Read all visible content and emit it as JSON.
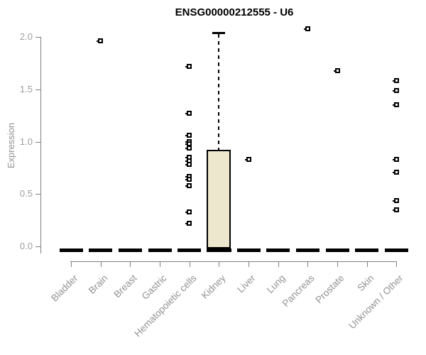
{
  "colors": {
    "box_fill": "#ECE7CD",
    "box_border": "#000000",
    "axis": "#808080",
    "muted_text": "#929292",
    "tick_text": "#9e9e9e",
    "title_text": "#000000",
    "background": "#ffffff"
  },
  "chart_data": {
    "type": "boxplot",
    "title": "ENSG00000212555 - U6",
    "xlabel": "",
    "ylabel": "Expression",
    "ylim": [
      0,
      2.1
    ],
    "yticks": [
      "0.0",
      "0.5",
      "1.0",
      "1.5",
      "2.0"
    ],
    "grid": false,
    "legend": null,
    "categories": [
      "Bladder",
      "Brain",
      "Breast",
      "Gastric",
      "Hematopoietic cells",
      "Kidney",
      "Liver",
      "Lung",
      "Pancreas",
      "Prostate",
      "Skin",
      "Unknown / Other"
    ],
    "series": [
      {
        "category": "Bladder",
        "q1": 0,
        "median": 0,
        "q3": 0,
        "whisker_low": 0,
        "whisker_high": 0,
        "outliers": []
      },
      {
        "category": "Brain",
        "q1": 0,
        "median": 0,
        "q3": 0,
        "whisker_low": 0,
        "whisker_high": 0,
        "outliers": [
          1.96
        ]
      },
      {
        "category": "Breast",
        "q1": 0,
        "median": 0,
        "q3": 0,
        "whisker_low": 0,
        "whisker_high": 0,
        "outliers": []
      },
      {
        "category": "Gastric",
        "q1": 0,
        "median": 0,
        "q3": 0,
        "whisker_low": 0,
        "whisker_high": 0,
        "outliers": []
      },
      {
        "category": "Hematopoietic cells",
        "q1": 0,
        "median": 0,
        "q3": 0,
        "whisker_low": 0,
        "whisker_high": 0,
        "outliers": [
          1.72,
          1.27,
          1.06,
          1.0,
          0.98,
          0.94,
          0.85,
          0.82,
          0.78,
          0.67,
          0.64,
          0.58,
          0.33,
          0.22
        ]
      },
      {
        "category": "Kidney",
        "q1": 0,
        "median": 0,
        "q3": 0.92,
        "whisker_low": 0,
        "whisker_high": 2.05,
        "outliers": []
      },
      {
        "category": "Liver",
        "q1": 0,
        "median": 0,
        "q3": 0,
        "whisker_low": 0,
        "whisker_high": 0,
        "outliers": [
          0.83
        ]
      },
      {
        "category": "Lung",
        "q1": 0,
        "median": 0,
        "q3": 0,
        "whisker_low": 0,
        "whisker_high": 0,
        "outliers": []
      },
      {
        "category": "Pancreas",
        "q1": 0,
        "median": 0,
        "q3": 0,
        "whisker_low": 0,
        "whisker_high": 0,
        "outliers": [
          2.08
        ]
      },
      {
        "category": "Prostate",
        "q1": 0,
        "median": 0,
        "q3": 0,
        "whisker_low": 0,
        "whisker_high": 0,
        "outliers": [
          1.68
        ]
      },
      {
        "category": "Skin",
        "q1": 0,
        "median": 0,
        "q3": 0,
        "whisker_low": 0,
        "whisker_high": 0,
        "outliers": []
      },
      {
        "category": "Unknown / Other",
        "q1": 0,
        "median": 0,
        "q3": 0,
        "whisker_low": 0,
        "whisker_high": 0,
        "outliers": [
          1.58,
          1.49,
          1.35,
          0.83,
          0.71,
          0.44,
          0.35
        ]
      }
    ]
  }
}
